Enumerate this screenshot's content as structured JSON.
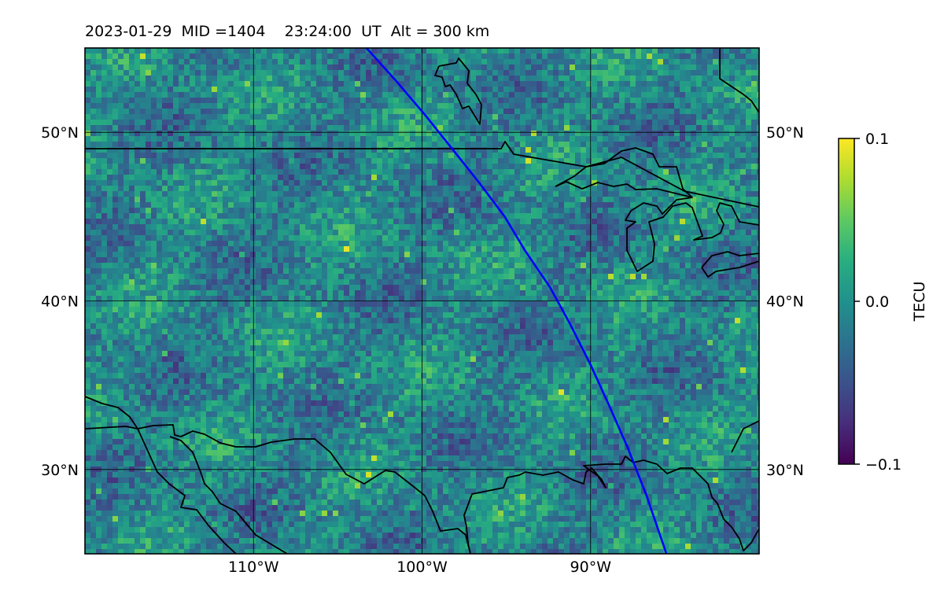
{
  "title": {
    "date": "2023-01-29",
    "mid": "MID =1404",
    "time": "23:24:00",
    "time_ref": "UT",
    "alt": "Alt = 300 km"
  },
  "map": {
    "projection": "equirectangular",
    "lon_range": [
      -120,
      -80
    ],
    "lat_range": [
      25,
      55
    ],
    "gridlines": {
      "lon": [
        -110,
        -100,
        -90
      ],
      "lat": [
        30,
        40,
        50
      ]
    },
    "lon_tick_labels": [
      "110°W",
      "100°W",
      "90°W"
    ],
    "lat_tick_labels": [
      "30°N",
      "40°N",
      "50°N"
    ],
    "field": "differential TEC (dTEC) perturbation map",
    "track_color": "#0000ff",
    "track": [
      [
        -103.3,
        55
      ],
      [
        -101.5,
        53
      ],
      [
        -99.8,
        51
      ],
      [
        -98.2,
        49
      ],
      [
        -96.6,
        47
      ],
      [
        -95.1,
        45
      ],
      [
        -93.9,
        43
      ],
      [
        -92.4,
        40.8
      ],
      [
        -91.2,
        38.6
      ],
      [
        -90.0,
        36.2
      ],
      [
        -88.9,
        33.8
      ],
      [
        -87.8,
        31.3
      ],
      [
        -86.7,
        28.5
      ],
      [
        -85.5,
        25
      ]
    ]
  },
  "colorbar": {
    "label": "TECU",
    "ticks": [
      "0.1",
      "0.0",
      "−0.1"
    ],
    "colormap": "viridis",
    "min": -0.1,
    "max": 0.1
  }
}
